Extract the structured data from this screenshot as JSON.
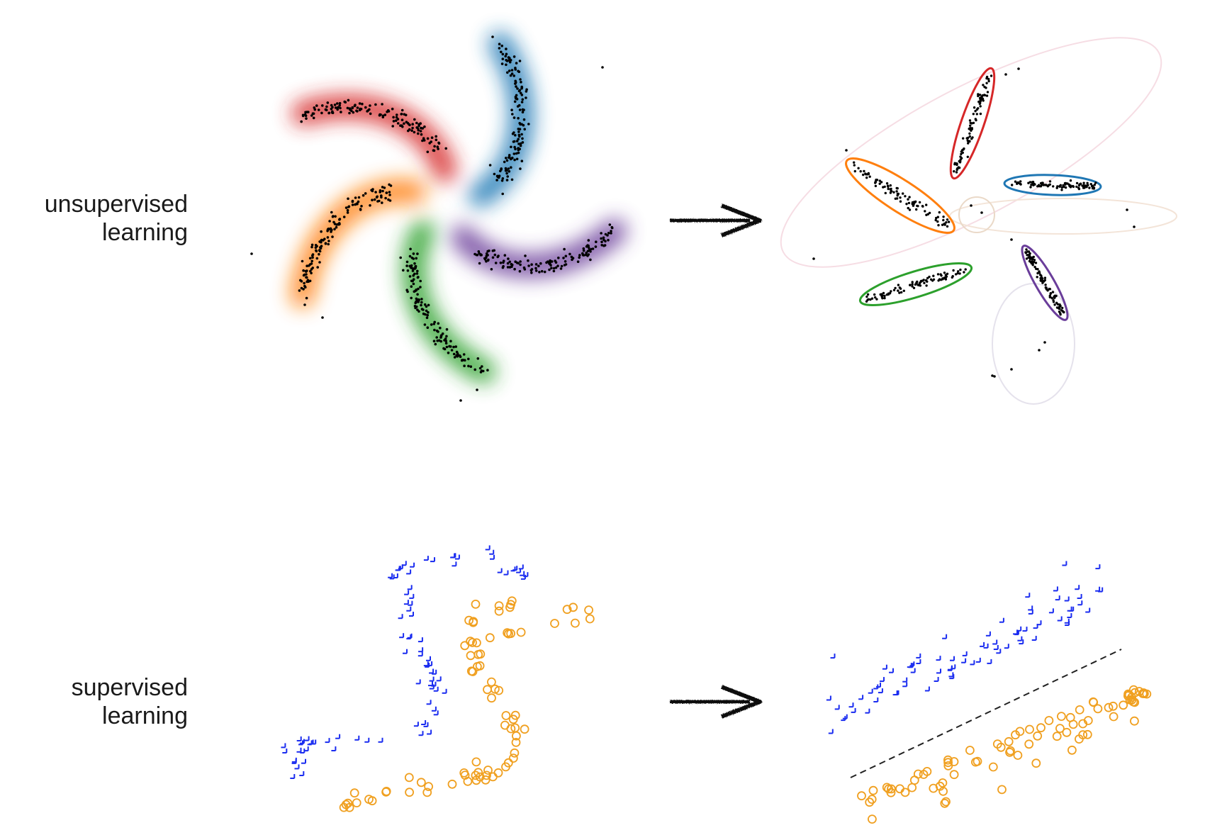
{
  "rows": {
    "unsupervised": {
      "line1": "unsupervised",
      "line2": "learning"
    },
    "supervised": {
      "line1": "supervised",
      "line2": "learning"
    }
  },
  "colors": {
    "red": "#d62728",
    "blue": "#1f77b4",
    "orange": "#ff7f0e",
    "green": "#2ca02c",
    "purple": "#6a3d9a",
    "points": "#000000",
    "plus": "#1a2cf0",
    "circle": "#f0a020",
    "boundary": "#222222",
    "faint_ellipse": "#f3d9e0"
  },
  "clusters": [
    "red",
    "blue",
    "orange",
    "green",
    "purple"
  ],
  "markers": {
    "class_a": "plus",
    "class_b": "circle"
  }
}
